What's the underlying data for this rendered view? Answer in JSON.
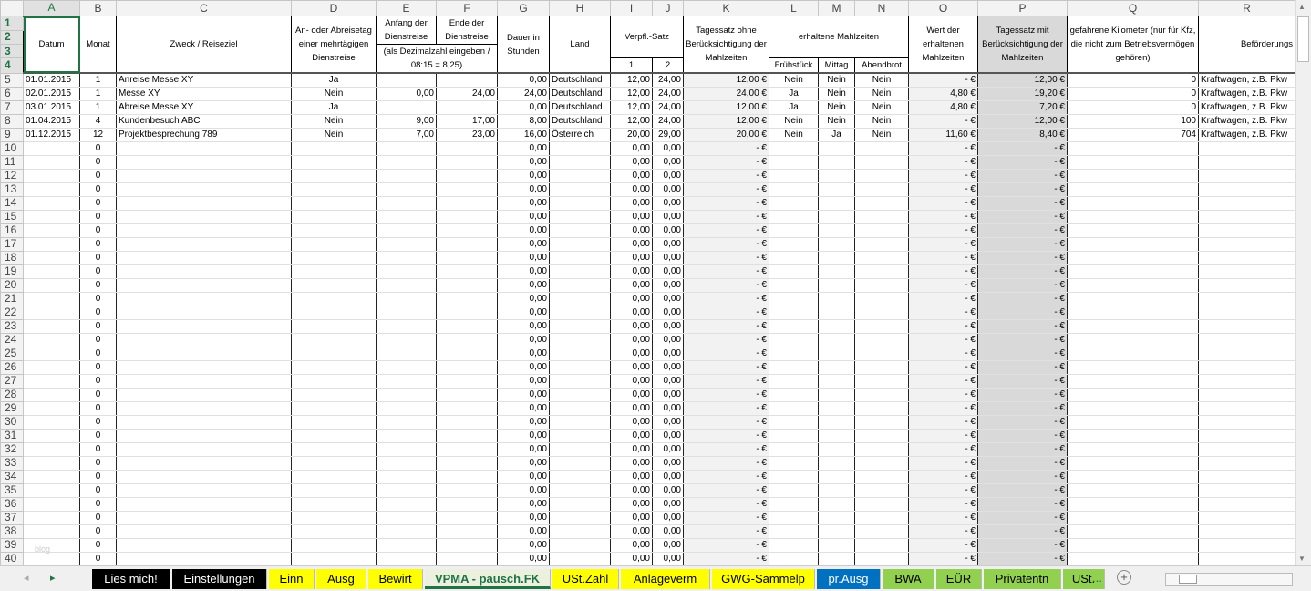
{
  "columns": [
    "A",
    "B",
    "C",
    "D",
    "E",
    "F",
    "G",
    "H",
    "I",
    "J",
    "K",
    "L",
    "M",
    "N",
    "O",
    "P",
    "Q",
    "R"
  ],
  "header": {
    "datum": "Datum",
    "monat": "Monat",
    "zweck": "Zweck / Reiseziel",
    "anreise": "An- oder Abreisetag einer mehrtägigen Dienstreise",
    "anfang": "Anfang der Dienstreise",
    "ende": "Ende der Dienstreise",
    "dezimal": "(als Dezimalzahl eingeben / 08:15 = 8,25)",
    "dauer": "Dauer in Stunden",
    "land": "Land",
    "verpfl": "Verpfl.-Satz",
    "verpfl_1": "1",
    "verpfl_2": "2",
    "tagessatz_ohne": "Tagessatz ohne Berücksichtigung der Mahlzeiten",
    "mahlzeiten": "erhaltene Mahlzeiten",
    "fruehstueck": "Frühstück",
    "mittag": "Mittag",
    "abendbrot": "Abendbrot",
    "wert": "Wert der erhaltenen Mahlzeiten",
    "tagessatz_mit": "Tagessatz mit Berücksichtigung der Mahlzeiten",
    "km": "gefahrene Kilometer (nur für Kfz, die nicht zum Betriebsvermögen gehören)",
    "befoerderung": "Beförderungs"
  },
  "rows": [
    {
      "n": "5",
      "A": "01.01.2015",
      "B": "1",
      "C": "Anreise Messe XY",
      "D": "Ja",
      "E": "",
      "F": "",
      "G": "0,00",
      "H": "Deutschland",
      "I": "12,00",
      "J": "24,00",
      "K": "12,00 €",
      "L": "Nein",
      "M": "Nein",
      "N": "Nein",
      "O": "-   €",
      "P": "12,00 €",
      "Q": "0",
      "R": "Kraftwagen, z.B. Pkw"
    },
    {
      "n": "6",
      "A": "02.01.2015",
      "B": "1",
      "C": "Messe XY",
      "D": "Nein",
      "E": "0,00",
      "F": "24,00",
      "G": "24,00",
      "H": "Deutschland",
      "I": "12,00",
      "J": "24,00",
      "K": "24,00 €",
      "L": "Ja",
      "M": "Nein",
      "N": "Nein",
      "O": "4,80 €",
      "P": "19,20 €",
      "Q": "0",
      "R": "Kraftwagen, z.B. Pkw"
    },
    {
      "n": "7",
      "A": "03.01.2015",
      "B": "1",
      "C": "Abreise Messe XY",
      "D": "Ja",
      "E": "",
      "F": "",
      "G": "0,00",
      "H": "Deutschland",
      "I": "12,00",
      "J": "24,00",
      "K": "12,00 €",
      "L": "Ja",
      "M": "Nein",
      "N": "Nein",
      "O": "4,80 €",
      "P": "7,20 €",
      "Q": "0",
      "R": "Kraftwagen, z.B. Pkw"
    },
    {
      "n": "8",
      "A": "01.04.2015",
      "B": "4",
      "C": "Kundenbesuch ABC",
      "D": "Nein",
      "E": "9,00",
      "F": "17,00",
      "G": "8,00",
      "H": "Deutschland",
      "I": "12,00",
      "J": "24,00",
      "K": "12,00 €",
      "L": "Nein",
      "M": "Nein",
      "N": "Nein",
      "O": "-   €",
      "P": "12,00 €",
      "Q": "100",
      "R": "Kraftwagen, z.B. Pkw"
    },
    {
      "n": "9",
      "A": "01.12.2015",
      "B": "12",
      "C": "Projektbesprechung 789",
      "D": "Nein",
      "E": "7,00",
      "F": "23,00",
      "G": "16,00",
      "H": "Österreich",
      "I": "20,00",
      "J": "29,00",
      "K": "20,00 €",
      "L": "Nein",
      "M": "Ja",
      "N": "Nein",
      "O": "11,60 €",
      "P": "8,40 €",
      "Q": "704",
      "R": "Kraftwagen, z.B. Pkw"
    }
  ],
  "empty_rows": {
    "first": 10,
    "last": 40,
    "B": "0",
    "G": "0,00",
    "I": "0,00",
    "J": "0,00",
    "K": "-   €",
    "O": "-   €",
    "P": "-   €"
  },
  "watermark": "blog",
  "tabs": [
    {
      "label": "Lies mich!",
      "bg": "#000000",
      "fg": "#ffffff"
    },
    {
      "label": "Einstellungen",
      "bg": "#000000",
      "fg": "#ffffff"
    },
    {
      "label": "Einn",
      "bg": "#ffff00",
      "fg": "#000000"
    },
    {
      "label": "Ausg",
      "bg": "#ffff00",
      "fg": "#000000"
    },
    {
      "label": "Bewirt",
      "bg": "#ffff00",
      "fg": "#000000"
    },
    {
      "label": "VPMA - pausch.FK",
      "bg": "#ebf1de",
      "fg": "#217346",
      "active": true
    },
    {
      "label": "USt.Zahl",
      "bg": "#ffff00",
      "fg": "#000000"
    },
    {
      "label": "Anlageverm",
      "bg": "#ffff00",
      "fg": "#000000"
    },
    {
      "label": "GWG-Sammelp",
      "bg": "#ffff00",
      "fg": "#000000"
    },
    {
      "label": "pr.Ausg",
      "bg": "#0070c0",
      "fg": "#ffffff"
    },
    {
      "label": "BWA",
      "bg": "#92d050",
      "fg": "#000000"
    },
    {
      "label": "EÜR",
      "bg": "#92d050",
      "fg": "#000000"
    },
    {
      "label": "Privatentn",
      "bg": "#92d050",
      "fg": "#000000"
    },
    {
      "label": "USt.",
      "bg": "#92d050",
      "fg": "#000000"
    }
  ],
  "more_tabs": "...",
  "add_sheet": "+"
}
